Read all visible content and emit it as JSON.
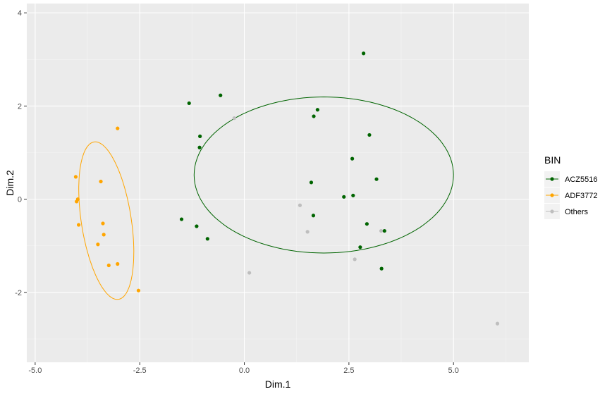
{
  "chart_data": {
    "type": "scatter",
    "xlabel": "Dim.1",
    "ylabel": "Dim.2",
    "xlim": [
      -5.2,
      6.8
    ],
    "ylim": [
      -3.5,
      4.2
    ],
    "x_ticks": [
      -5.0,
      -2.5,
      0.0,
      2.5,
      5.0
    ],
    "x_tick_labels": [
      "-5.0",
      "-2.5",
      "0.0",
      "2.5",
      "5.0"
    ],
    "y_ticks": [
      -2,
      0,
      2,
      4
    ],
    "y_tick_labels": [
      "-2",
      "0",
      "2",
      "4"
    ],
    "grid": true,
    "legend": {
      "title": "BIN",
      "placement": "right",
      "entries": [
        "ACZ5516",
        "ADF3772",
        "Others"
      ]
    },
    "series": [
      {
        "name": "ACZ5516",
        "color": "#006400",
        "points": [
          [
            -1.32,
            2.06
          ],
          [
            -0.57,
            2.23
          ],
          [
            -1.06,
            1.35
          ],
          [
            -1.07,
            1.11
          ],
          [
            -1.5,
            -0.43
          ],
          [
            -1.14,
            -0.58
          ],
          [
            -0.88,
            -0.85
          ],
          [
            1.66,
            1.78
          ],
          [
            1.75,
            1.92
          ],
          [
            2.85,
            3.13
          ],
          [
            2.99,
            1.38
          ],
          [
            2.58,
            0.87
          ],
          [
            1.6,
            0.36
          ],
          [
            3.16,
            0.43
          ],
          [
            2.38,
            0.05
          ],
          [
            2.6,
            0.08
          ],
          [
            1.65,
            -0.35
          ],
          [
            2.93,
            -0.53
          ],
          [
            3.35,
            -0.68
          ],
          [
            2.77,
            -1.03
          ],
          [
            3.28,
            -1.49
          ]
        ],
        "ellipse": {
          "center": [
            1.9,
            0.52
          ],
          "rx": 6.2,
          "ry": 3.35,
          "angle_deg": 0
        }
      },
      {
        "name": "ADF3772",
        "color": "#FFA500",
        "points": [
          [
            -3.03,
            1.52
          ],
          [
            -3.43,
            0.38
          ],
          [
            -4.03,
            0.48
          ],
          [
            -3.98,
            0.0
          ],
          [
            -4.01,
            -0.05
          ],
          [
            -3.96,
            -0.55
          ],
          [
            -3.38,
            -0.52
          ],
          [
            -3.36,
            -0.76
          ],
          [
            -3.5,
            -0.97
          ],
          [
            -3.24,
            -1.42
          ],
          [
            -3.03,
            -1.39
          ],
          [
            -2.53,
            -1.96
          ]
        ],
        "ellipse": {
          "center": [
            -3.3,
            -0.46
          ],
          "rx": 1.2,
          "ry": 3.4,
          "angle_deg": 6
        }
      },
      {
        "name": "Others",
        "color": "#BEBEBE",
        "points": [
          [
            -0.24,
            1.74
          ],
          [
            1.33,
            -0.13
          ],
          [
            1.51,
            -0.7
          ],
          [
            3.27,
            -0.68
          ],
          [
            2.64,
            -1.29
          ],
          [
            0.12,
            -1.58
          ],
          [
            6.05,
            -2.67
          ]
        ]
      }
    ]
  }
}
